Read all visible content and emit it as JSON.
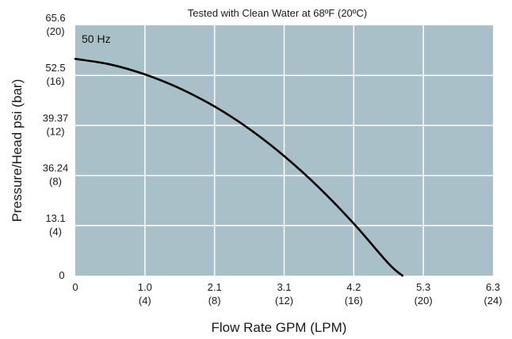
{
  "chart_data": {
    "type": "line",
    "title": "Tested with Clean Water at 68ºF (20ºC)",
    "xlabel": "Flow Rate GPM (LPM)",
    "ylabel": "Pressure/Head psi (bar)",
    "x_ticks": [
      {
        "value": 0,
        "label": "0",
        "sublabel": ""
      },
      {
        "value": 1,
        "label": "1.0",
        "sublabel": "(4)"
      },
      {
        "value": 2,
        "label": "2.1",
        "sublabel": "(8)"
      },
      {
        "value": 3,
        "label": "3.1",
        "sublabel": "(12)"
      },
      {
        "value": 4,
        "label": "4.2",
        "sublabel": "(16)"
      },
      {
        "value": 5,
        "label": "5.3",
        "sublabel": "(20)"
      },
      {
        "value": 6,
        "label": "6.3",
        "sublabel": "(24)"
      }
    ],
    "y_ticks": [
      {
        "value": 0,
        "label": "0",
        "sublabel": ""
      },
      {
        "value": 1,
        "label": "13.1",
        "sublabel": "(4)"
      },
      {
        "value": 2,
        "label": "36.24",
        "sublabel": "(8)"
      },
      {
        "value": 3,
        "label": "39.37",
        "sublabel": "(12)"
      },
      {
        "value": 4,
        "label": "52.5",
        "sublabel": "(16)"
      },
      {
        "value": 5,
        "label": "65.6",
        "sublabel": "(20)"
      }
    ],
    "xlim": [
      0,
      6
    ],
    "ylim": [
      0,
      5
    ],
    "grid": true,
    "series": [
      {
        "name": "50 Hz",
        "x": [
          0,
          0.5,
          1.0,
          1.5,
          2.0,
          2.5,
          3.0,
          3.5,
          4.0,
          4.5,
          4.7
        ],
        "y": [
          4.33,
          4.22,
          4.02,
          3.74,
          3.38,
          2.93,
          2.39,
          1.76,
          1.04,
          0.24,
          0.0
        ]
      }
    ]
  },
  "style": {
    "plot_bg": "#a9c0c9",
    "grid_color": "#ffffff",
    "line_color": "#000000"
  }
}
